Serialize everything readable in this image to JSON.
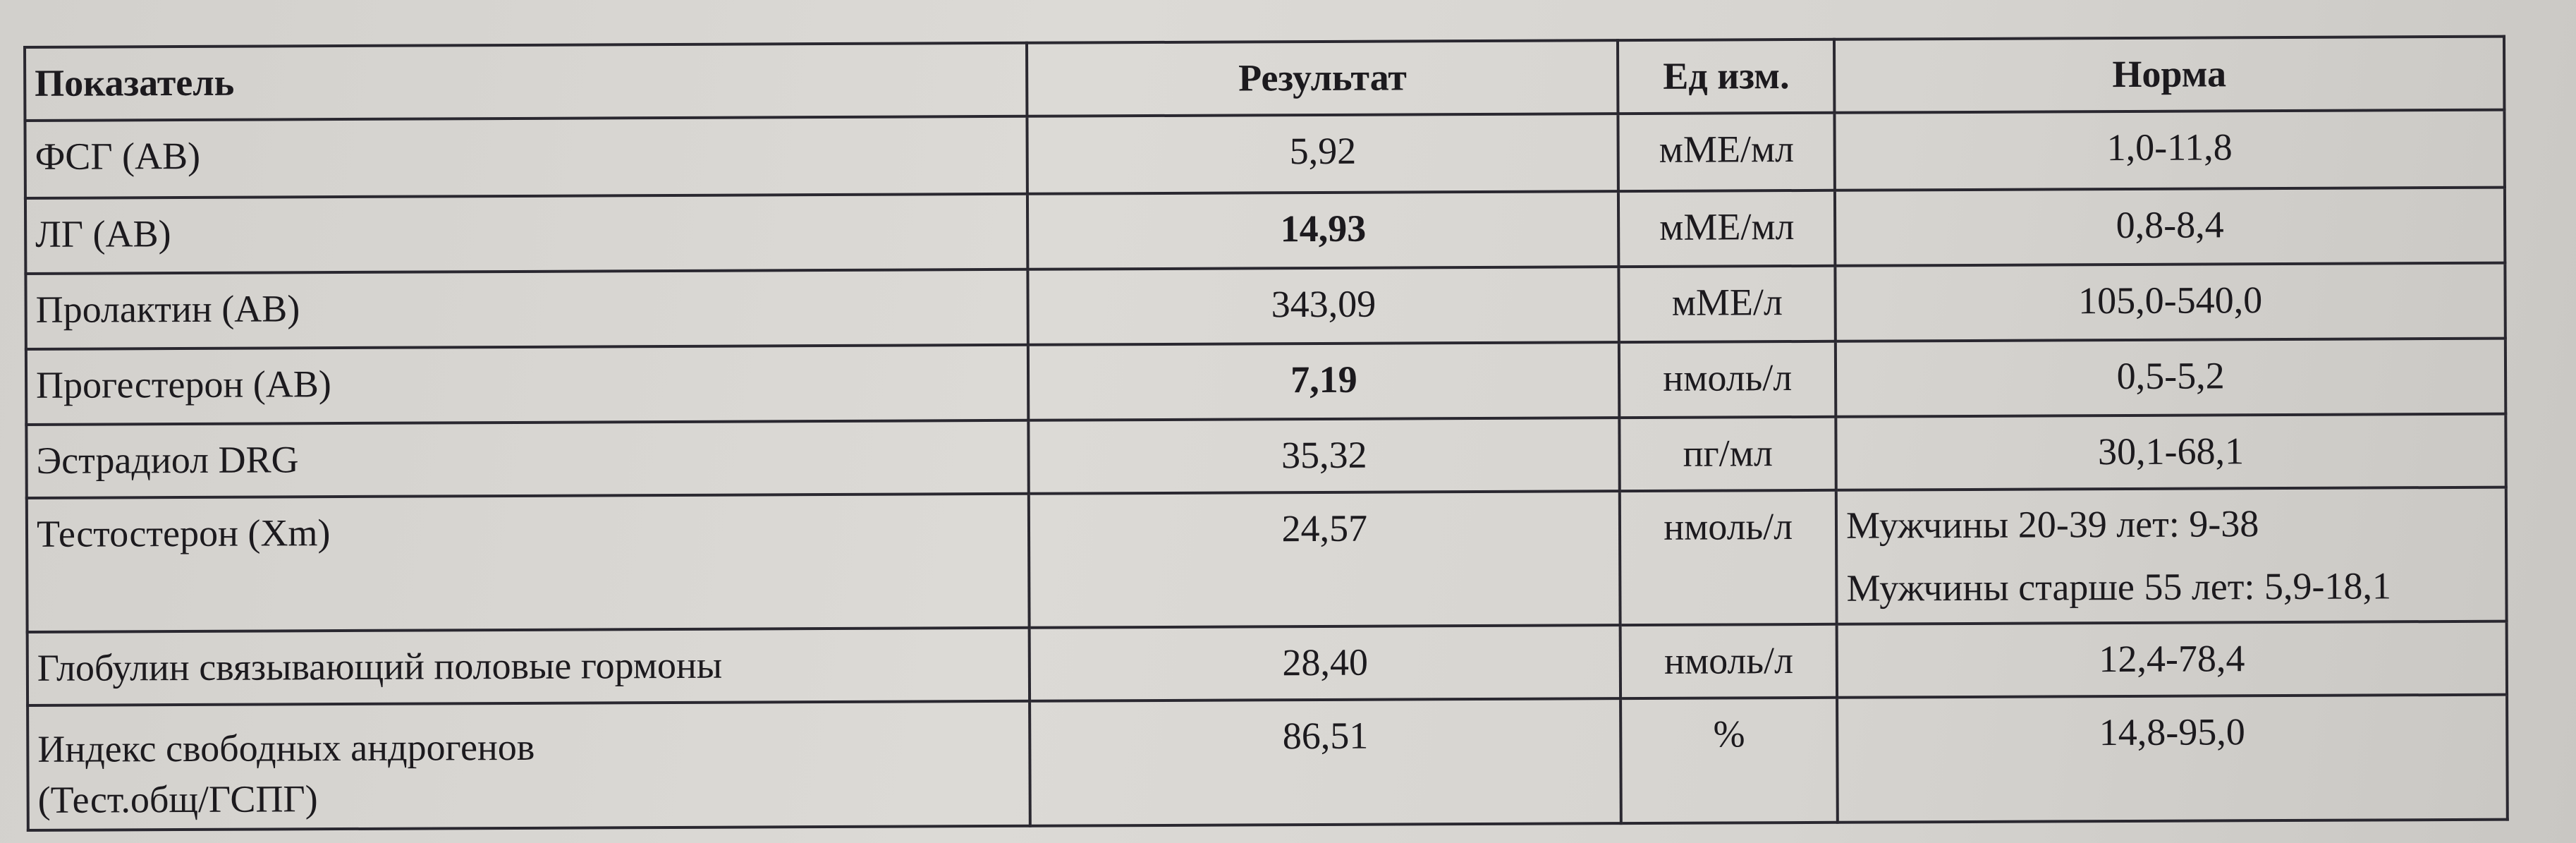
{
  "headers": {
    "indicator": "Показатель",
    "result": "Результат",
    "unit": "Ед изм.",
    "norm": "Норма"
  },
  "rows": [
    {
      "name": "ФСГ (АВ)",
      "result": "5,92",
      "unit": "мМЕ/мл",
      "norm": "1,0-11,8",
      "bold": false
    },
    {
      "name": "ЛГ (АВ)",
      "result": "14,93",
      "unit": "мМЕ/мл",
      "norm": "0,8-8,4",
      "bold": true
    },
    {
      "name": "Пролактин (АВ)",
      "result": "343,09",
      "unit": "мМЕ/л",
      "norm": "105,0-540,0",
      "bold": false
    },
    {
      "name": "Прогестерон (АВ)",
      "result": "7,19",
      "unit": "нмоль/л",
      "norm": "0,5-5,2",
      "bold": true
    },
    {
      "name": "Эстрадиол DRG",
      "result": "35,32",
      "unit": "пг/мл",
      "norm": "30,1-68,1",
      "bold": false
    },
    {
      "name": "Тестостерон (Xm)",
      "result": "24,57",
      "unit": "нмоль/л",
      "norm_lines": [
        "Мужчины 20-39 лет: 9-38",
        "Мужчины старше 55 лет: 5,9-18,1"
      ],
      "bold": false
    },
    {
      "name": "Глобулин связывающий половые гормоны",
      "result": "28,40",
      "unit": "нмоль/л",
      "norm": "12,4-78,4",
      "bold": false
    },
    {
      "name_lines": [
        "Индекс свободных андрогенов",
        "(Тест.общ/ГСПГ)"
      ],
      "result": "86,51",
      "unit": "%",
      "norm": "14,8-95,0",
      "bold": false
    }
  ]
}
